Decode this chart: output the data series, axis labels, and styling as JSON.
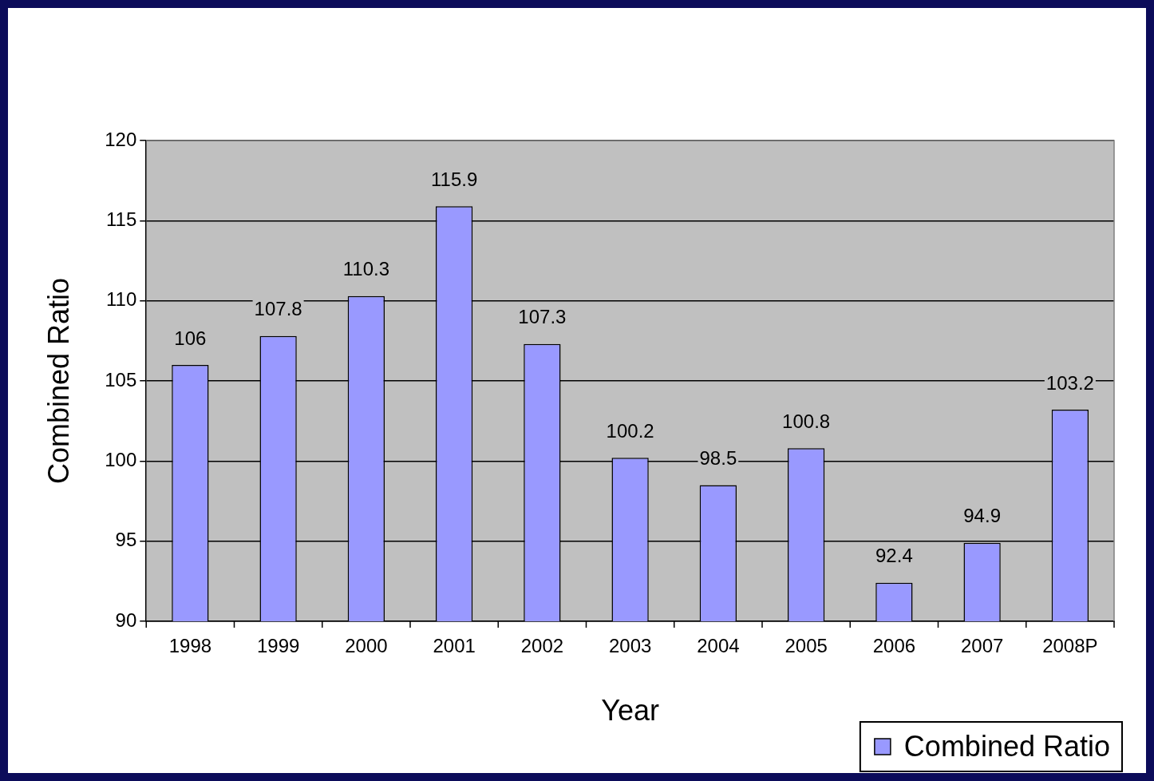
{
  "chart_data": {
    "type": "bar",
    "xlabel": "Year",
    "ylabel": "Combined Ratio",
    "categories": [
      "1998",
      "1999",
      "2000",
      "2001",
      "2002",
      "2003",
      "2004",
      "2005",
      "2006",
      "2007",
      "2008P"
    ],
    "series": [
      {
        "name": "Combined Ratio",
        "color": "#9999ff",
        "values": [
          106,
          107.8,
          110.3,
          115.9,
          107.3,
          100.2,
          98.5,
          100.8,
          92.4,
          94.9,
          103.2
        ]
      }
    ],
    "ylim": [
      90,
      120
    ],
    "yticks": [
      90,
      95,
      100,
      105,
      110,
      115,
      120
    ],
    "grid": "y",
    "legend": "bottom right",
    "data_labels": true
  }
}
